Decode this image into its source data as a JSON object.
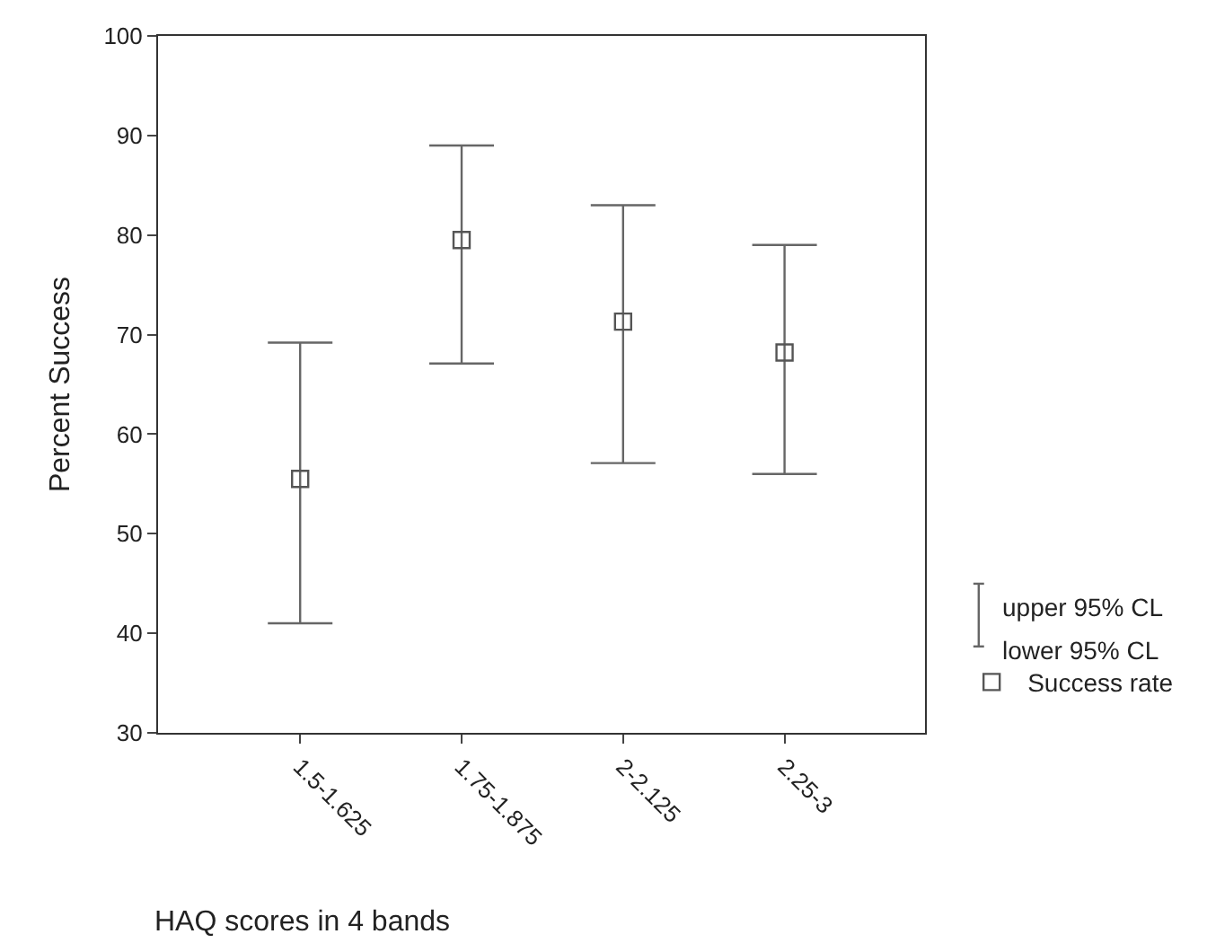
{
  "chart_data": {
    "type": "scatter",
    "xlabel": "HAQ scores in 4 bands",
    "ylabel": "Percent Success",
    "categories": [
      "1.5-1.625",
      "1.75-1.875",
      "2-2.125",
      "2.25-3"
    ],
    "series": [
      {
        "name": "Success rate",
        "color": "#555555",
        "values": [
          55.5,
          79.5,
          71.3,
          68.2
        ],
        "errors": [
          [
            41,
            69.2
          ],
          [
            67.1,
            89
          ],
          [
            57.1,
            83
          ],
          [
            56,
            79
          ]
        ]
      }
    ],
    "ylim": [
      30,
      100
    ],
    "yticks": [
      30,
      40,
      50,
      60,
      70,
      80,
      90,
      100
    ],
    "legend": "bottom right",
    "marker": "square",
    "annotations": [
      "upper 95% CL",
      "lower 95% CL"
    ]
  }
}
